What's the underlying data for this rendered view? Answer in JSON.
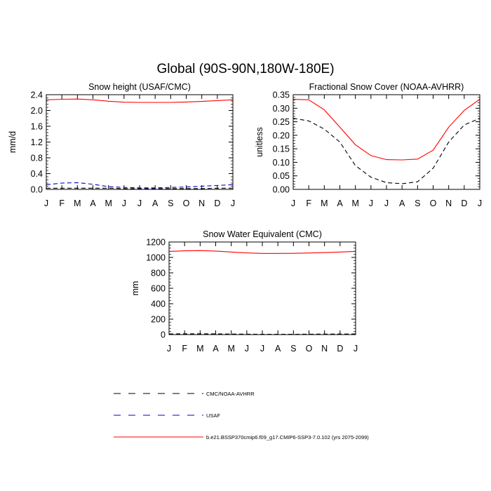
{
  "figure": {
    "title": "Global (90S-90N,180W-180E)"
  },
  "months": [
    "J",
    "F",
    "M",
    "A",
    "M",
    "J",
    "J",
    "A",
    "S",
    "O",
    "N",
    "D",
    "J"
  ],
  "legend": {
    "items": [
      {
        "label": "CMC/NOAA-AVHRR",
        "color": "#000000",
        "dash": "dashed-long"
      },
      {
        "label": "USAF",
        "color": "#0000cc",
        "dash": "dashed-long"
      },
      {
        "label": "b.e21.BSSP370cmip6.f09_g17.CMIP6-SSP3-7.0.102 (yrs 2075-2099)",
        "color": "#ff0000",
        "dash": "solid"
      }
    ]
  },
  "chart_data": [
    {
      "type": "line",
      "title": "Snow height (USAF/CMC)",
      "ylabel": "mm/d",
      "xlabel": "",
      "x": [
        1,
        2,
        3,
        4,
        5,
        6,
        7,
        8,
        9,
        10,
        11,
        12,
        13
      ],
      "xlim": [
        1,
        13
      ],
      "ylim": [
        0,
        2.4
      ],
      "yticks": [
        "0.0",
        "0.4",
        "0.8",
        "1.2",
        "1.6",
        "2.0",
        "2.4"
      ],
      "ytick_values": [
        0,
        0.4,
        0.8,
        1.2,
        1.6,
        2.0,
        2.4
      ],
      "minor_step": 0.08,
      "grid": false,
      "series": [
        {
          "name": "CMC/NOAA-AVHRR",
          "color": "#000000",
          "style": "dashed",
          "values": [
            0.03,
            0.03,
            0.03,
            0.03,
            0.03,
            0.02,
            0.02,
            0.02,
            0.02,
            0.02,
            0.02,
            0.03,
            0.03
          ]
        },
        {
          "name": "USAF",
          "color": "#0000cc",
          "style": "dashed",
          "values": [
            0.12,
            0.16,
            0.17,
            0.13,
            0.07,
            0.05,
            0.04,
            0.04,
            0.05,
            0.06,
            0.08,
            0.1,
            0.12
          ]
        },
        {
          "name": "b.e21.BSSP370cmip6.f09_g17.CMIP6-SSP3-7.0.102 (yrs 2075-2099)",
          "color": "#ff0000",
          "style": "solid",
          "values": [
            2.27,
            2.285,
            2.29,
            2.27,
            2.235,
            2.21,
            2.205,
            2.205,
            2.205,
            2.215,
            2.23,
            2.25,
            2.27
          ]
        }
      ]
    },
    {
      "type": "line",
      "title": "Fractional Snow Cover (NOAA-AVHRR)",
      "ylabel": "unitless",
      "xlabel": "",
      "x": [
        1,
        2,
        3,
        4,
        5,
        6,
        7,
        8,
        9,
        10,
        11,
        12,
        13
      ],
      "xlim": [
        1,
        13
      ],
      "ylim": [
        0,
        0.35
      ],
      "yticks": [
        "0.00",
        "0.05",
        "0.10",
        "0.15",
        "0.20",
        "0.25",
        "0.30",
        "0.35"
      ],
      "ytick_values": [
        0,
        0.05,
        0.1,
        0.15,
        0.2,
        0.25,
        0.3,
        0.35
      ],
      "minor_step": 0.01,
      "grid": false,
      "series": [
        {
          "name": "CMC/NOAA-AVHRR",
          "color": "#000000",
          "style": "dashed",
          "values": [
            0.263,
            0.253,
            0.223,
            0.175,
            0.088,
            0.045,
            0.025,
            0.021,
            0.028,
            0.078,
            0.175,
            0.238,
            0.263
          ]
        },
        {
          "name": "b.e21.BSSP370cmip6.f09_g17.CMIP6-SSP3-7.0.102 (yrs 2075-2099)",
          "color": "#ff0000",
          "style": "solid",
          "values": [
            0.333,
            0.331,
            0.294,
            0.23,
            0.165,
            0.125,
            0.11,
            0.109,
            0.112,
            0.145,
            0.23,
            0.292,
            0.333
          ]
        }
      ]
    },
    {
      "type": "line",
      "title": "Snow Water Equivalent (CMC)",
      "ylabel": "mm",
      "xlabel": "",
      "x": [
        1,
        2,
        3,
        4,
        5,
        6,
        7,
        8,
        9,
        10,
        11,
        12,
        13
      ],
      "xlim": [
        1,
        13
      ],
      "ylim": [
        0,
        1200
      ],
      "yticks": [
        "0",
        "200",
        "400",
        "600",
        "800",
        "1000",
        "1200"
      ],
      "ytick_values": [
        0,
        200,
        400,
        600,
        800,
        1000,
        1200
      ],
      "minor_step": 40,
      "grid": false,
      "series": [
        {
          "name": "CMC/NOAA-AVHRR",
          "color": "#000000",
          "style": "dashed",
          "values": [
            8,
            10,
            10,
            9,
            7,
            5,
            4,
            4,
            4,
            5,
            6,
            7,
            8
          ]
        },
        {
          "name": "b.e21.BSSP370cmip6.f09_g17.CMIP6-SSP3-7.0.102 (yrs 2075-2099)",
          "color": "#ff0000",
          "style": "solid",
          "values": [
            1078,
            1085,
            1088,
            1083,
            1070,
            1058,
            1052,
            1052,
            1053,
            1057,
            1063,
            1070,
            1078
          ]
        }
      ]
    }
  ]
}
